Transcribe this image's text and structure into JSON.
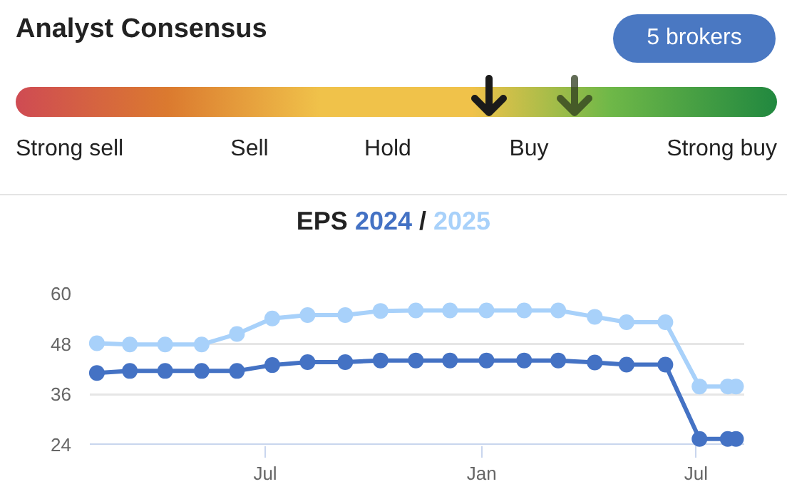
{
  "chart_data": [
    {
      "type": "other",
      "title": "Analyst Consensus",
      "annotations": [
        "5 brokers"
      ],
      "categories": [
        "Strong sell",
        "Sell",
        "Hold",
        "Buy",
        "Strong buy"
      ]
    },
    {
      "type": "line",
      "title": "EPS",
      "x": [
        "2023-02-08",
        "2023-03-08",
        "2023-04-07",
        "2023-05-08",
        "2023-06-07",
        "2023-07-07",
        "2023-08-06",
        "2023-09-07",
        "2023-10-07",
        "2023-11-06",
        "2023-12-05",
        "2024-01-05",
        "2024-02-06",
        "2024-03-06",
        "2024-04-06",
        "2024-05-03",
        "2024-06-05",
        "2024-07-04",
        "2024-07-28",
        "2024-08-04"
      ],
      "series": [
        {
          "name": "2024",
          "color": "#4472c4",
          "values": [
            41.1,
            41.6,
            41.6,
            41.6,
            41.6,
            43.0,
            43.7,
            43.7,
            44.1,
            44.1,
            44.1,
            44.1,
            44.1,
            44.1,
            43.6,
            43.1,
            43.1,
            25.4,
            25.4,
            25.4
          ]
        },
        {
          "name": "2025",
          "color": "#a8d1fa",
          "values": [
            48.2,
            47.9,
            47.9,
            47.9,
            50.4,
            54.1,
            54.9,
            54.9,
            55.9,
            56.0,
            56.0,
            56.0,
            56.0,
            56.0,
            54.5,
            53.2,
            53.2,
            37.9,
            37.9,
            37.9
          ]
        }
      ],
      "xlim": [
        "2023-02-02",
        "2024-08-11"
      ],
      "xticks": [
        {
          "value": "2023-07-01",
          "label": "Jul"
        },
        {
          "value": "2024-01-01",
          "label": "Jan"
        },
        {
          "value": "2024-07-01",
          "label": "Jul"
        }
      ],
      "ylim": [
        24,
        60
      ],
      "annotations": [
        "/"
      ],
      "yticks": [
        24,
        36,
        48,
        60
      ],
      "grid": "y",
      "legend": false,
      "marker": "circle",
      "line_style": "solid"
    }
  ]
}
